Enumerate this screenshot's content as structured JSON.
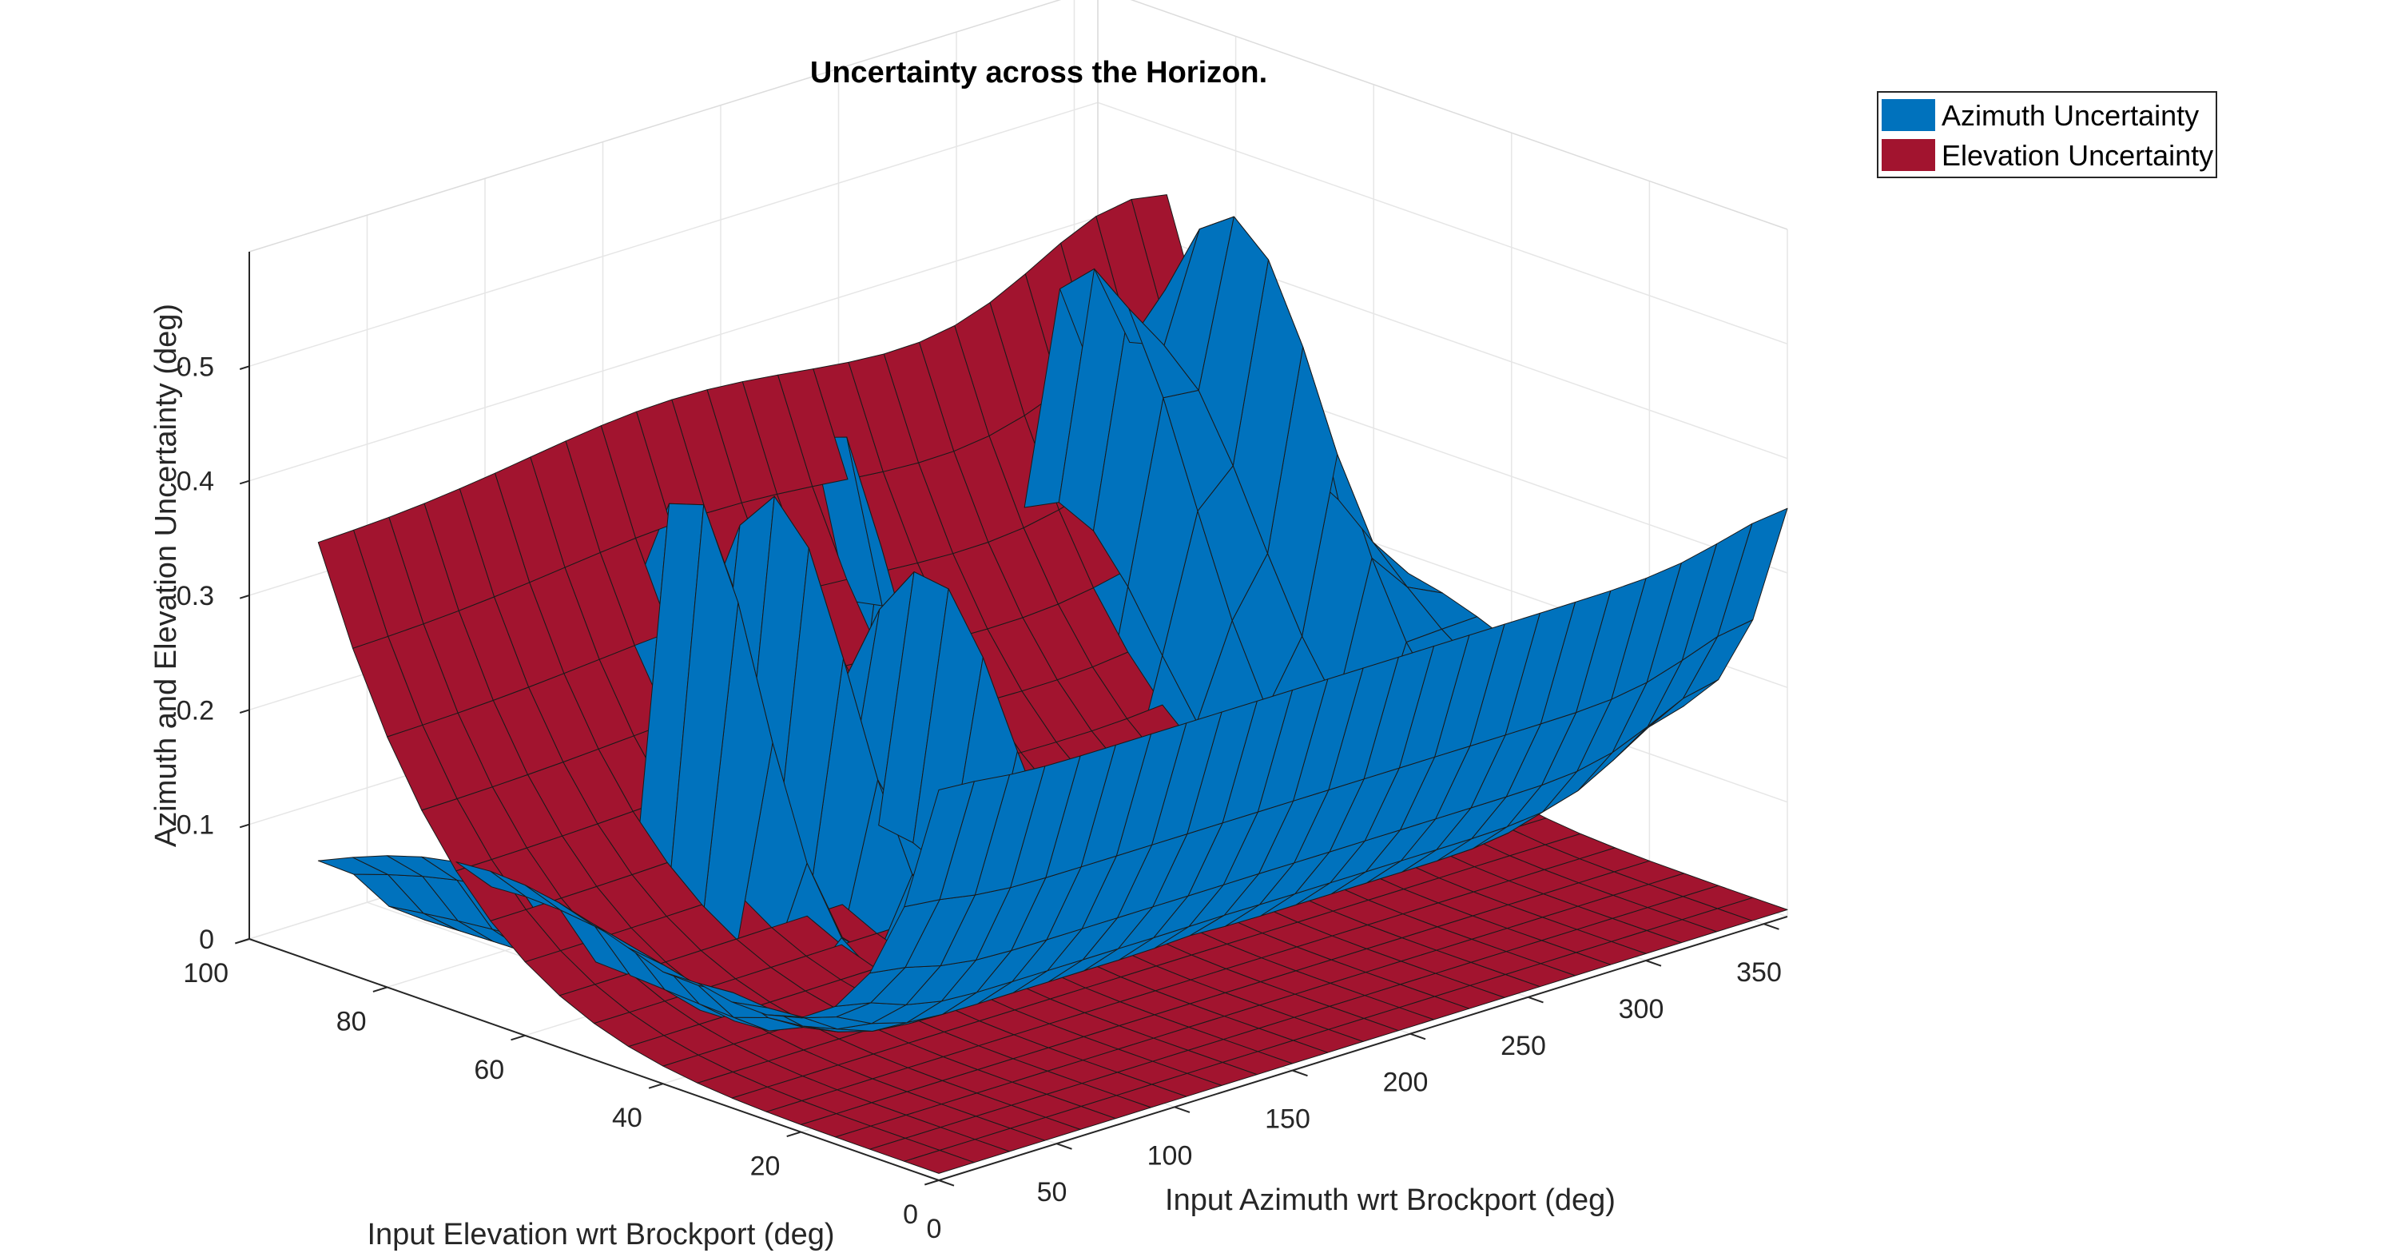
{
  "chart_data": {
    "type": "surface",
    "title": "Uncertainty across the Horizon.",
    "xlabel": "Input Azimuth wrt Brockport (deg)",
    "ylabel": "Input Elevation wrt Brockport (deg)",
    "zlabel": "Azimuth and Elevation Uncertainty (deg)",
    "xlim": [
      0,
      360
    ],
    "ylim": [
      0,
      100
    ],
    "zlim": [
      0,
      0.6
    ],
    "x_ticks": [
      "0",
      "50",
      "100",
      "150",
      "200",
      "250",
      "300",
      "350"
    ],
    "y_ticks": [
      "0",
      "20",
      "40",
      "60",
      "80",
      "100"
    ],
    "z_ticks": [
      "0",
      "0.1",
      "0.2",
      "0.3",
      "0.4",
      "0.5"
    ],
    "grid": true,
    "legend_position": "top-right",
    "x_grid": [
      0,
      15,
      30,
      45,
      60,
      75,
      90,
      105,
      120,
      135,
      150,
      165,
      180,
      195,
      210,
      225,
      240,
      255,
      270,
      285,
      300,
      315,
      330,
      345,
      360
    ],
    "y_grid": [
      0,
      5,
      10,
      15,
      20,
      25,
      30,
      35,
      40,
      45,
      50,
      55,
      60,
      65,
      70,
      75,
      80,
      85,
      90
    ],
    "series": [
      {
        "name": "Azimuth Uncertainty",
        "color": "#0072BD",
        "surface": "high at low elevation (~0.3 at 0 deg, rising toward ~0.45-0.55 near azimuth 0 and 360); near zero over mid elevations; sharp spikes near azimuth 100-210 and 290-330 at high elevations"
      },
      {
        "name": "Elevation Uncertainty",
        "color": "#A2142F",
        "surface": "near zero at low elevation; rising steeply with elevation to ~0.35-0.45 near 90 deg elevation across all azimuths"
      }
    ]
  },
  "legend": {
    "items": [
      {
        "label": "Azimuth Uncertainty",
        "color": "#0072BD"
      },
      {
        "label": "Elevation Uncertainty",
        "color": "#A2142F"
      }
    ]
  }
}
